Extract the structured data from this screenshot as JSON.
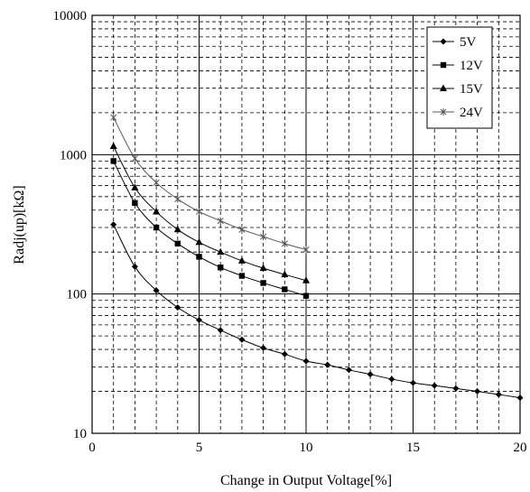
{
  "chart_data": {
    "type": "line",
    "xlabel": "Change in Output Voltage[%]",
    "ylabel": "Radj(up)[kΩ]",
    "xlim": [
      0,
      20
    ],
    "ylim": [
      10,
      10000
    ],
    "yscale": "log",
    "x_ticks": [
      0,
      5,
      10,
      15,
      20
    ],
    "y_ticks": [
      10,
      100,
      1000,
      10000
    ],
    "grid": true,
    "legend_position": "top-right",
    "series": [
      {
        "name": "5V",
        "marker": "diamond",
        "x": [
          1,
          2,
          3,
          4,
          5,
          6,
          7,
          8,
          9,
          10,
          11,
          12,
          13,
          14,
          15,
          16,
          17,
          18,
          19,
          20
        ],
        "y": [
          315,
          157,
          106,
          80,
          65,
          55,
          47,
          41,
          37,
          33,
          31,
          28.5,
          26.5,
          24.5,
          23,
          22,
          21,
          20,
          19,
          18
        ]
      },
      {
        "name": "12V",
        "marker": "square",
        "x": [
          1,
          2,
          3,
          4,
          5,
          6,
          7,
          8,
          9,
          10
        ],
        "y": [
          900,
          450,
          300,
          230,
          185,
          155,
          135,
          120,
          108,
          97
        ]
      },
      {
        "name": "15V",
        "marker": "triangle",
        "x": [
          1,
          2,
          3,
          4,
          5,
          6,
          7,
          8,
          9,
          10
        ],
        "y": [
          1150,
          580,
          390,
          290,
          235,
          200,
          173,
          153,
          138,
          125
        ]
      },
      {
        "name": "24V",
        "marker": "star",
        "x": [
          1,
          2,
          3,
          4,
          5,
          6,
          7,
          8,
          9,
          10
        ],
        "y": [
          1850,
          940,
          630,
          480,
          390,
          335,
          290,
          258,
          230,
          208
        ]
      }
    ]
  }
}
